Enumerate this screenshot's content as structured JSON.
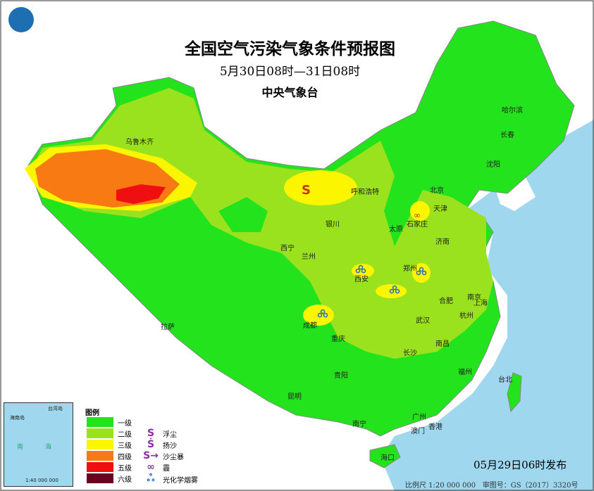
{
  "header": {
    "title": "全国空气污染气象条件预报图",
    "period": "5月30日08时—31日08时",
    "issuer": "中央气象台"
  },
  "legend": {
    "title": "图例",
    "levels": [
      {
        "label": "一级",
        "color": "#22e31c"
      },
      {
        "label": "二级",
        "color": "#9be21e"
      },
      {
        "label": "三级",
        "color": "#fbf500"
      },
      {
        "label": "四级",
        "color": "#f77a12"
      },
      {
        "label": "五级",
        "color": "#f00f10"
      },
      {
        "label": "六级",
        "color": "#6b0020"
      }
    ],
    "symbols": [
      {
        "icon": "floating-dust-icon",
        "label": "浮尘"
      },
      {
        "icon": "blowing-sand-icon",
        "label": "扬沙"
      },
      {
        "icon": "sandstorm-icon",
        "label": "沙尘暴"
      },
      {
        "icon": "haze-icon",
        "label": "霾"
      },
      {
        "icon": "photochemical-smog-icon",
        "label": "光化学烟雾"
      }
    ]
  },
  "cities": [
    "乌鲁木齐",
    "哈尔滨",
    "长春",
    "沈阳",
    "呼和浩特",
    "北京",
    "天津",
    "石家庄",
    "太原",
    "济南",
    "银川",
    "西宁",
    "兰州",
    "西安",
    "郑州",
    "南京",
    "合肥",
    "上海",
    "成都",
    "武汉",
    "杭州",
    "重庆",
    "长沙",
    "南昌",
    "拉萨",
    "贵阳",
    "福州",
    "台北",
    "昆明",
    "南宁",
    "广州",
    "澳门",
    "香港",
    "海口"
  ],
  "footer": {
    "issued": "05月29日06时发布",
    "scale": "比例尺 1:20 000 000",
    "approval": "审图号：GS（2017）3320号"
  },
  "inset": {
    "labels": [
      "海南岛",
      "台湾岛",
      "南",
      "海"
    ],
    "scale": "1:40 000 000"
  }
}
